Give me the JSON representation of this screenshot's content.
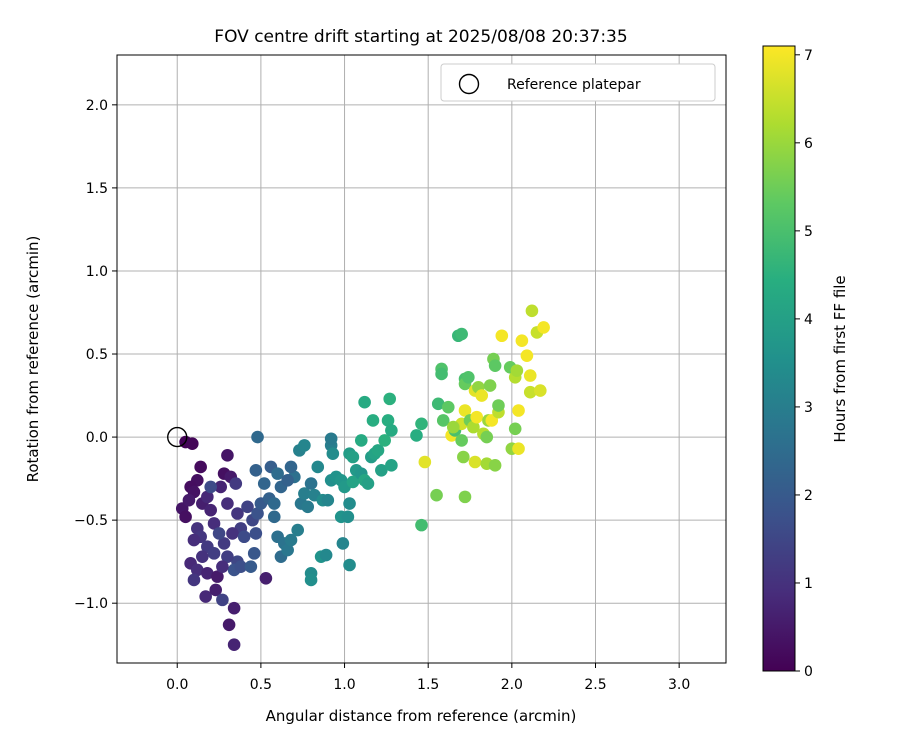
{
  "chart_data": {
    "type": "scatter",
    "title": "FOV centre drift starting at 2025/08/08 20:37:35",
    "xlabel": "Angular distance from reference (arcmin)",
    "ylabel": "Rotation from reference (arcmin)",
    "xlim": [
      -0.36,
      3.28
    ],
    "ylim": [
      -1.36,
      2.3
    ],
    "xticks": [
      "0.0",
      "0.5",
      "1.0",
      "1.5",
      "2.0",
      "2.5",
      "3.0"
    ],
    "yticks": [
      "−1.0",
      "−0.5",
      "0.0",
      "0.5",
      "1.0",
      "1.5",
      "2.0"
    ],
    "grid": true,
    "legend": {
      "placement": "top-right",
      "entries": [
        "Reference platepar"
      ]
    },
    "reference_point": {
      "x": 0.0,
      "y": 0.0
    },
    "colorbar": {
      "label": "Hours from first FF file",
      "colormap": "viridis",
      "range": [
        0,
        7.1
      ],
      "ticks": [
        "0",
        "1",
        "2",
        "3",
        "4",
        "5",
        "6",
        "7"
      ]
    },
    "points": [
      {
        "x": 0.05,
        "y": -0.03,
        "h": 0.05
      },
      {
        "x": 0.09,
        "y": -0.04,
        "h": 0.1
      },
      {
        "x": 0.14,
        "y": -0.18,
        "h": 0.2
      },
      {
        "x": 0.12,
        "y": -0.26,
        "h": 0.3
      },
      {
        "x": 0.08,
        "y": -0.3,
        "h": 0.25
      },
      {
        "x": 0.1,
        "y": -0.33,
        "h": 0.35
      },
      {
        "x": 0.03,
        "y": -0.43,
        "h": 0.4
      },
      {
        "x": 0.05,
        "y": -0.48,
        "h": 0.3
      },
      {
        "x": 0.07,
        "y": -0.38,
        "h": 0.5
      },
      {
        "x": 0.15,
        "y": -0.4,
        "h": 0.6
      },
      {
        "x": 0.18,
        "y": -0.36,
        "h": 0.8
      },
      {
        "x": 0.2,
        "y": -0.44,
        "h": 0.7
      },
      {
        "x": 0.22,
        "y": -0.52,
        "h": 0.9
      },
      {
        "x": 0.12,
        "y": -0.55,
        "h": 1.0
      },
      {
        "x": 0.14,
        "y": -0.6,
        "h": 1.1
      },
      {
        "x": 0.1,
        "y": -0.62,
        "h": 0.9
      },
      {
        "x": 0.18,
        "y": -0.66,
        "h": 1.2
      },
      {
        "x": 0.22,
        "y": -0.7,
        "h": 1.3
      },
      {
        "x": 0.15,
        "y": -0.72,
        "h": 1.0
      },
      {
        "x": 0.08,
        "y": -0.76,
        "h": 0.8
      },
      {
        "x": 0.12,
        "y": -0.8,
        "h": 0.9
      },
      {
        "x": 0.1,
        "y": -0.86,
        "h": 1.1
      },
      {
        "x": 0.18,
        "y": -0.82,
        "h": 0.7
      },
      {
        "x": 0.24,
        "y": -0.84,
        "h": 0.5
      },
      {
        "x": 0.17,
        "y": -0.96,
        "h": 0.8
      },
      {
        "x": 0.23,
        "y": -0.92,
        "h": 0.6
      },
      {
        "x": 0.27,
        "y": -0.98,
        "h": 1.4
      },
      {
        "x": 0.31,
        "y": -1.13,
        "h": 0.5
      },
      {
        "x": 0.34,
        "y": -1.03,
        "h": 0.6
      },
      {
        "x": 0.34,
        "y": -1.25,
        "h": 0.7
      },
      {
        "x": 0.3,
        "y": -0.11,
        "h": 0.4
      },
      {
        "x": 0.28,
        "y": -0.22,
        "h": 0.3
      },
      {
        "x": 0.32,
        "y": -0.24,
        "h": 0.5
      },
      {
        "x": 0.26,
        "y": -0.3,
        "h": 0.7
      },
      {
        "x": 0.3,
        "y": -0.4,
        "h": 0.9
      },
      {
        "x": 0.35,
        "y": -0.28,
        "h": 1.2
      },
      {
        "x": 0.36,
        "y": -0.46,
        "h": 1.1
      },
      {
        "x": 0.38,
        "y": -0.55,
        "h": 1.3
      },
      {
        "x": 0.33,
        "y": -0.58,
        "h": 1.0
      },
      {
        "x": 0.28,
        "y": -0.64,
        "h": 1.2
      },
      {
        "x": 0.25,
        "y": -0.58,
        "h": 1.5
      },
      {
        "x": 0.2,
        "y": -0.3,
        "h": 1.6
      },
      {
        "x": 0.42,
        "y": -0.42,
        "h": 1.4
      },
      {
        "x": 0.4,
        "y": -0.6,
        "h": 1.6
      },
      {
        "x": 0.36,
        "y": -0.75,
        "h": 1.5
      },
      {
        "x": 0.34,
        "y": -0.8,
        "h": 1.8
      },
      {
        "x": 0.38,
        "y": -0.78,
        "h": 1.7
      },
      {
        "x": 0.3,
        "y": -0.72,
        "h": 1.3
      },
      {
        "x": 0.27,
        "y": -0.78,
        "h": 0.9
      },
      {
        "x": 0.44,
        "y": -0.78,
        "h": 2.0
      },
      {
        "x": 0.46,
        "y": -0.7,
        "h": 1.9
      },
      {
        "x": 0.47,
        "y": -0.58,
        "h": 1.7
      },
      {
        "x": 0.45,
        "y": -0.5,
        "h": 1.5
      },
      {
        "x": 0.48,
        "y": -0.46,
        "h": 1.8
      },
      {
        "x": 0.5,
        "y": -0.4,
        "h": 2.0
      },
      {
        "x": 0.47,
        "y": -0.2,
        "h": 2.2
      },
      {
        "x": 0.48,
        "y": 0.0,
        "h": 2.4
      },
      {
        "x": 0.52,
        "y": -0.28,
        "h": 2.3
      },
      {
        "x": 0.55,
        "y": -0.37,
        "h": 2.2
      },
      {
        "x": 0.58,
        "y": -0.4,
        "h": 2.4
      },
      {
        "x": 0.53,
        "y": -0.85,
        "h": 0.6
      },
      {
        "x": 0.56,
        "y": -0.18,
        "h": 2.1
      },
      {
        "x": 0.6,
        "y": -0.22,
        "h": 2.5
      },
      {
        "x": 0.62,
        "y": -0.3,
        "h": 2.3
      },
      {
        "x": 0.58,
        "y": -0.48,
        "h": 2.4
      },
      {
        "x": 0.6,
        "y": -0.6,
        "h": 2.6
      },
      {
        "x": 0.62,
        "y": -0.72,
        "h": 2.5
      },
      {
        "x": 0.64,
        "y": -0.64,
        "h": 2.7
      },
      {
        "x": 0.66,
        "y": -0.68,
        "h": 2.8
      },
      {
        "x": 0.68,
        "y": -0.62,
        "h": 2.9
      },
      {
        "x": 0.72,
        "y": -0.56,
        "h": 3.0
      },
      {
        "x": 0.74,
        "y": -0.4,
        "h": 2.8
      },
      {
        "x": 0.76,
        "y": -0.34,
        "h": 3.0
      },
      {
        "x": 0.78,
        "y": -0.42,
        "h": 2.9
      },
      {
        "x": 0.73,
        "y": -0.08,
        "h": 3.1
      },
      {
        "x": 0.76,
        "y": -0.05,
        "h": 3.2
      },
      {
        "x": 0.7,
        "y": -0.24,
        "h": 2.6
      },
      {
        "x": 0.66,
        "y": -0.26,
        "h": 2.2
      },
      {
        "x": 0.68,
        "y": -0.18,
        "h": 2.3
      },
      {
        "x": 0.8,
        "y": -0.28,
        "h": 2.7
      },
      {
        "x": 0.82,
        "y": -0.35,
        "h": 3.1
      },
      {
        "x": 0.84,
        "y": -0.18,
        "h": 3.3
      },
      {
        "x": 0.87,
        "y": -0.38,
        "h": 3.4
      },
      {
        "x": 0.9,
        "y": -0.38,
        "h": 3.2
      },
      {
        "x": 0.8,
        "y": -0.82,
        "h": 3.4
      },
      {
        "x": 0.8,
        "y": -0.86,
        "h": 3.5
      },
      {
        "x": 0.86,
        "y": -0.72,
        "h": 3.6
      },
      {
        "x": 0.89,
        "y": -0.71,
        "h": 3.3
      },
      {
        "x": 0.92,
        "y": -0.26,
        "h": 3.5
      },
      {
        "x": 0.95,
        "y": -0.24,
        "h": 3.6
      },
      {
        "x": 0.92,
        "y": -0.05,
        "h": 3.0
      },
      {
        "x": 0.92,
        "y": -0.01,
        "h": 2.9
      },
      {
        "x": 0.93,
        "y": -0.1,
        "h": 3.4
      },
      {
        "x": 0.98,
        "y": -0.26,
        "h": 3.7
      },
      {
        "x": 1.0,
        "y": -0.3,
        "h": 3.8
      },
      {
        "x": 0.98,
        "y": -0.48,
        "h": 3.6
      },
      {
        "x": 1.02,
        "y": -0.48,
        "h": 3.5
      },
      {
        "x": 1.03,
        "y": -0.4,
        "h": 3.4
      },
      {
        "x": 0.99,
        "y": -0.64,
        "h": 3.2
      },
      {
        "x": 1.03,
        "y": -0.77,
        "h": 3.4
      },
      {
        "x": 1.03,
        "y": -0.1,
        "h": 3.9
      },
      {
        "x": 1.05,
        "y": -0.12,
        "h": 4.0
      },
      {
        "x": 1.07,
        "y": -0.2,
        "h": 3.8
      },
      {
        "x": 1.05,
        "y": -0.27,
        "h": 4.1
      },
      {
        "x": 1.1,
        "y": -0.22,
        "h": 3.7
      },
      {
        "x": 1.12,
        "y": -0.26,
        "h": 4.2
      },
      {
        "x": 1.1,
        "y": -0.02,
        "h": 4.3
      },
      {
        "x": 1.12,
        "y": 0.21,
        "h": 4.3
      },
      {
        "x": 1.14,
        "y": -0.28,
        "h": 4.0
      },
      {
        "x": 1.16,
        "y": -0.12,
        "h": 3.9
      },
      {
        "x": 1.17,
        "y": 0.1,
        "h": 4.4
      },
      {
        "x": 1.18,
        "y": -0.1,
        "h": 4.1
      },
      {
        "x": 1.2,
        "y": -0.08,
        "h": 4.2
      },
      {
        "x": 1.22,
        "y": -0.2,
        "h": 4.0
      },
      {
        "x": 1.24,
        "y": -0.02,
        "h": 4.5
      },
      {
        "x": 1.26,
        "y": 0.1,
        "h": 4.4
      },
      {
        "x": 1.28,
        "y": 0.04,
        "h": 4.3
      },
      {
        "x": 1.27,
        "y": 0.23,
        "h": 4.5
      },
      {
        "x": 1.28,
        "y": -0.17,
        "h": 4.1
      },
      {
        "x": 1.43,
        "y": 0.01,
        "h": 4.4
      },
      {
        "x": 1.46,
        "y": 0.08,
        "h": 4.6
      },
      {
        "x": 1.46,
        "y": -0.53,
        "h": 4.9
      },
      {
        "x": 1.48,
        "y": -0.15,
        "h": 6.8
      },
      {
        "x": 1.55,
        "y": -0.35,
        "h": 5.6
      },
      {
        "x": 1.56,
        "y": 0.2,
        "h": 4.8
      },
      {
        "x": 1.58,
        "y": 0.41,
        "h": 5.1
      },
      {
        "x": 1.58,
        "y": 0.38,
        "h": 4.9
      },
      {
        "x": 1.59,
        "y": 0.1,
        "h": 5.2
      },
      {
        "x": 1.62,
        "y": 0.18,
        "h": 5.3
      },
      {
        "x": 1.64,
        "y": 0.01,
        "h": 7.0
      },
      {
        "x": 1.66,
        "y": 0.04,
        "h": 5.0
      },
      {
        "x": 1.68,
        "y": 0.61,
        "h": 4.7
      },
      {
        "x": 1.7,
        "y": 0.62,
        "h": 4.8
      },
      {
        "x": 1.72,
        "y": 0.35,
        "h": 5.0
      },
      {
        "x": 1.7,
        "y": 0.08,
        "h": 6.6
      },
      {
        "x": 1.72,
        "y": 0.16,
        "h": 6.9
      },
      {
        "x": 1.7,
        "y": -0.02,
        "h": 5.4
      },
      {
        "x": 1.71,
        "y": -0.12,
        "h": 5.8
      },
      {
        "x": 1.72,
        "y": -0.36,
        "h": 5.7
      },
      {
        "x": 1.72,
        "y": 0.32,
        "h": 5.4
      },
      {
        "x": 1.74,
        "y": 0.36,
        "h": 5.1
      },
      {
        "x": 1.75,
        "y": 0.1,
        "h": 5.5
      },
      {
        "x": 1.77,
        "y": 0.06,
        "h": 6.2
      },
      {
        "x": 1.78,
        "y": 0.28,
        "h": 6.8
      },
      {
        "x": 1.79,
        "y": 0.12,
        "h": 7.0
      },
      {
        "x": 1.78,
        "y": -0.15,
        "h": 6.7
      },
      {
        "x": 1.8,
        "y": 0.3,
        "h": 5.9
      },
      {
        "x": 1.82,
        "y": 0.25,
        "h": 6.9
      },
      {
        "x": 1.83,
        "y": 0.02,
        "h": 6.3
      },
      {
        "x": 1.85,
        "y": -0.16,
        "h": 6.1
      },
      {
        "x": 1.85,
        "y": 0.0,
        "h": 5.6
      },
      {
        "x": 1.86,
        "y": 0.1,
        "h": 6.0
      },
      {
        "x": 1.87,
        "y": 0.31,
        "h": 5.7
      },
      {
        "x": 1.88,
        "y": 0.1,
        "h": 7.0
      },
      {
        "x": 1.89,
        "y": 0.47,
        "h": 5.6
      },
      {
        "x": 1.9,
        "y": 0.43,
        "h": 5.3
      },
      {
        "x": 1.9,
        "y": -0.17,
        "h": 5.8
      },
      {
        "x": 1.92,
        "y": 0.15,
        "h": 6.4
      },
      {
        "x": 1.92,
        "y": 0.19,
        "h": 5.5
      },
      {
        "x": 1.94,
        "y": 0.61,
        "h": 7.0
      },
      {
        "x": 1.99,
        "y": 0.42,
        "h": 5.4
      },
      {
        "x": 2.0,
        "y": -0.07,
        "h": 5.9
      },
      {
        "x": 2.02,
        "y": 0.05,
        "h": 5.6
      },
      {
        "x": 2.02,
        "y": 0.36,
        "h": 6.3
      },
      {
        "x": 2.03,
        "y": 0.4,
        "h": 6.1
      },
      {
        "x": 2.04,
        "y": -0.07,
        "h": 6.9
      },
      {
        "x": 2.04,
        "y": 0.16,
        "h": 7.0
      },
      {
        "x": 2.06,
        "y": 0.58,
        "h": 7.0
      },
      {
        "x": 2.09,
        "y": 0.49,
        "h": 7.0
      },
      {
        "x": 2.11,
        "y": 0.37,
        "h": 6.9
      },
      {
        "x": 2.11,
        "y": 0.27,
        "h": 6.5
      },
      {
        "x": 2.12,
        "y": 0.76,
        "h": 6.4
      },
      {
        "x": 2.15,
        "y": 0.63,
        "h": 6.5
      },
      {
        "x": 2.17,
        "y": 0.28,
        "h": 6.7
      },
      {
        "x": 2.19,
        "y": 0.66,
        "h": 7.0
      },
      {
        "x": 1.65,
        "y": 0.06,
        "h": 6.0
      }
    ]
  }
}
